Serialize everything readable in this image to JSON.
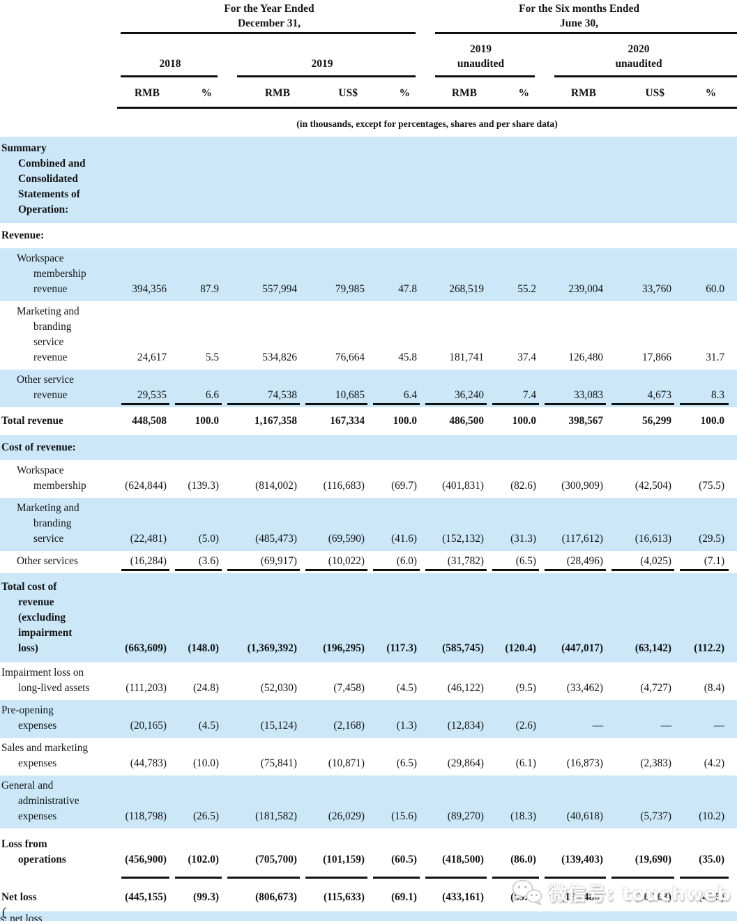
{
  "colors": {
    "band": "#cbe7f8",
    "rule": "#101010"
  },
  "table": {
    "period_groups": [
      {
        "title": "For the Year Ended\nDecember 31,"
      },
      {
        "title": "For the Six months Ended\nJune 30,"
      }
    ],
    "year_groups": [
      {
        "label": "2018"
      },
      {
        "label": "2019"
      },
      {
        "label": "2019\nunaudited"
      },
      {
        "label": "2020\nunaudited"
      }
    ],
    "columns": [
      "RMB",
      "%",
      "RMB",
      "US$",
      "%",
      "RMB",
      "%",
      "RMB",
      "US$",
      "%"
    ],
    "note": "(in thousands, except for percentages, shares and per share data)",
    "rows": [
      {
        "kind": "section",
        "shaded": true,
        "bold": true,
        "indent": 0,
        "underline": false,
        "label": "Summary\nCombined and\nConsolidated\nStatements of\nOperation:",
        "values": []
      },
      {
        "kind": "heading",
        "shaded": false,
        "bold": true,
        "indent": 0,
        "underline": false,
        "label": "Revenue:",
        "values": []
      },
      {
        "kind": "item",
        "shaded": true,
        "bold": false,
        "indent": 1,
        "underline": false,
        "label": "Workspace\nmembership\nrevenue",
        "values": [
          "394,356",
          "87.9",
          "557,994",
          "79,985",
          "47.8",
          "268,519",
          "55.2",
          "239,004",
          "33,760",
          "60.0"
        ]
      },
      {
        "kind": "item",
        "shaded": false,
        "bold": false,
        "indent": 1,
        "underline": false,
        "label": "Marketing and\nbranding\nservice\nrevenue",
        "values": [
          "24,617",
          "5.5",
          "534,826",
          "76,664",
          "45.8",
          "181,741",
          "37.4",
          "126,480",
          "17,866",
          "31.7"
        ]
      },
      {
        "kind": "item",
        "shaded": true,
        "bold": false,
        "indent": 1,
        "underline": true,
        "label": "Other service\nrevenue",
        "values": [
          "29,535",
          "6.6",
          "74,538",
          "10,685",
          "6.4",
          "36,240",
          "7.4",
          "33,083",
          "4,673",
          "8.3"
        ]
      },
      {
        "kind": "total",
        "shaded": false,
        "bold": true,
        "indent": 0,
        "underline": false,
        "label": "Total revenue",
        "values": [
          "448,508",
          "100.0",
          "1,167,358",
          "167,334",
          "100.0",
          "486,500",
          "100.0",
          "398,567",
          "56,299",
          "100.0"
        ]
      },
      {
        "kind": "heading",
        "shaded": true,
        "bold": true,
        "indent": 0,
        "underline": false,
        "label": "Cost of revenue:",
        "values": []
      },
      {
        "kind": "item",
        "shaded": false,
        "bold": false,
        "indent": 1,
        "underline": false,
        "label": "Workspace\nmembership",
        "values": [
          "(624,844)",
          "(139.3)",
          "(814,002)",
          "(116,683)",
          "(69.7)",
          "(401,831)",
          "(82.6)",
          "(300,909)",
          "(42,504)",
          "(75.5)"
        ]
      },
      {
        "kind": "item",
        "shaded": true,
        "bold": false,
        "indent": 1,
        "underline": false,
        "label": "Marketing and\nbranding\nservice",
        "values": [
          "(22,481)",
          "(5.0)",
          "(485,473)",
          "(69,590)",
          "(41.6)",
          "(152,132)",
          "(31.3)",
          "(117,612)",
          "(16,613)",
          "(29.5)"
        ]
      },
      {
        "kind": "item",
        "shaded": false,
        "bold": false,
        "indent": 1,
        "underline": true,
        "label": "Other services",
        "values": [
          "(16,284)",
          "(3.6)",
          "(69,917)",
          "(10,022)",
          "(6.0)",
          "(31,782)",
          "(6.5)",
          "(28,496)",
          "(4,025)",
          "(7.1)"
        ]
      },
      {
        "kind": "total",
        "shaded": true,
        "bold": true,
        "indent": 0,
        "underline": false,
        "label": "Total cost of\nrevenue\n(excluding\nimpairment\nloss)",
        "values": [
          "(663,609)",
          "(148.0)",
          "(1,369,392)",
          "(196,295)",
          "(117.3)",
          "(585,745)",
          "(120.4)",
          "(447,017)",
          "(63,142)",
          "(112.2)"
        ]
      },
      {
        "kind": "item",
        "shaded": false,
        "bold": false,
        "indent": 0,
        "underline": false,
        "label": "Impairment loss on\nlong-lived assets",
        "values": [
          "(111,203)",
          "(24.8)",
          "(52,030)",
          "(7,458)",
          "(4.5)",
          "(46,122)",
          "(9.5)",
          "(33,462)",
          "(4,727)",
          "(8.4)"
        ]
      },
      {
        "kind": "item",
        "shaded": true,
        "bold": false,
        "indent": 0,
        "underline": false,
        "label": "Pre-opening\nexpenses",
        "values": [
          "(20,165)",
          "(4.5)",
          "(15,124)",
          "(2,168)",
          "(1.3)",
          "(12,834)",
          "(2.6)",
          "—",
          "—",
          "—"
        ]
      },
      {
        "kind": "item",
        "shaded": false,
        "bold": false,
        "indent": 0,
        "underline": false,
        "label": "Sales and marketing\nexpenses",
        "values": [
          "(44,783)",
          "(10.0)",
          "(75,841)",
          "(10,871)",
          "(6.5)",
          "(29,864)",
          "(6.1)",
          "(16,873)",
          "(2,383)",
          "(4.2)"
        ]
      },
      {
        "kind": "item",
        "shaded": true,
        "bold": false,
        "indent": 0,
        "underline": false,
        "label": "General and\nadministrative\nexpenses",
        "values": [
          "(118,798)",
          "(26.5)",
          "(181,582)",
          "(26,029)",
          "(15.6)",
          "(89,270)",
          "(18.3)",
          "(40,618)",
          "(5,737)",
          "(10.2)"
        ]
      },
      {
        "kind": "losstotal",
        "shaded": false,
        "bold": true,
        "indent": 0,
        "underline": true,
        "label": "Loss from\noperations",
        "values": [
          "(456,900)",
          "(102.0)",
          "(705,700)",
          "(101,159)",
          "(60.5)",
          "(418,500)",
          "(86.0)",
          "(139,403)",
          "(19,690)",
          "(35.0)"
        ]
      },
      {
        "kind": "netloss",
        "shaded": false,
        "bold": true,
        "indent": 0,
        "underline": false,
        "label": "Net loss",
        "values": [
          "(445,155)",
          "(99.3)",
          "(806,673)",
          "(115,633)",
          "(69.1)",
          "(433,161)",
          "(89.0)",
          "(189,480)",
          "(26,763)",
          "(47.5)"
        ]
      },
      {
        "kind": "clipped",
        "shaded": true,
        "bold": false,
        "indent": 0,
        "underline": false,
        "label": "Less: net loss",
        "values": []
      }
    ]
  },
  "watermark": {
    "icon": "wechat-icon",
    "label": "微信号: touchweb"
  },
  "footer": {
    "stray_text": "("
  }
}
